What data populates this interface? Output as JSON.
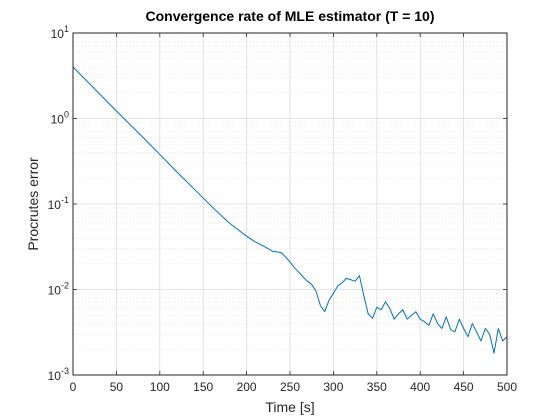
{
  "chart_data": {
    "type": "line",
    "title": "Convergence rate of MLE estimator (T = 10)",
    "xlabel": "Time [s]",
    "ylabel": "Procrutes error",
    "xlim": [
      0,
      500
    ],
    "ylim": [
      0.001,
      10
    ],
    "yscale": "log",
    "grid": true,
    "minor_grid": true,
    "x_ticks": [
      0,
      50,
      100,
      150,
      200,
      250,
      300,
      350,
      400,
      450,
      500
    ],
    "x_tick_labels": [
      "0",
      "50",
      "100",
      "150",
      "200",
      "250",
      "300",
      "350",
      "400",
      "450",
      "500"
    ],
    "y_ticks": [
      0.001,
      0.01,
      0.1,
      1,
      10
    ],
    "y_tick_labels": [
      {
        "base": "10",
        "exp": "-3"
      },
      {
        "base": "10",
        "exp": "-2"
      },
      {
        "base": "10",
        "exp": "-1"
      },
      {
        "base": "10",
        "exp": "0"
      },
      {
        "base": "10",
        "exp": "1"
      }
    ],
    "series": [
      {
        "color": "#0072BD",
        "x": [
          0,
          20,
          40,
          60,
          80,
          100,
          120,
          140,
          160,
          180,
          200,
          210,
          220,
          230,
          240,
          245,
          250,
          255,
          260,
          265,
          270,
          275,
          280,
          285,
          290,
          295,
          300,
          305,
          310,
          315,
          320,
          325,
          330,
          335,
          340,
          345,
          350,
          355,
          360,
          365,
          370,
          375,
          380,
          385,
          390,
          395,
          400,
          405,
          410,
          415,
          420,
          425,
          430,
          435,
          440,
          445,
          450,
          455,
          460,
          465,
          470,
          475,
          480,
          485,
          490,
          495,
          500
        ],
        "y": [
          4.0,
          2.5,
          1.55,
          0.97,
          0.61,
          0.38,
          0.235,
          0.148,
          0.093,
          0.06,
          0.042,
          0.036,
          0.032,
          0.028,
          0.027,
          0.024,
          0.021,
          0.018,
          0.016,
          0.014,
          0.0125,
          0.0115,
          0.0095,
          0.0065,
          0.0055,
          0.0075,
          0.009,
          0.011,
          0.012,
          0.0135,
          0.013,
          0.0125,
          0.0145,
          0.0085,
          0.0052,
          0.0046,
          0.0062,
          0.0058,
          0.0072,
          0.006,
          0.0045,
          0.0052,
          0.0058,
          0.0045,
          0.005,
          0.0055,
          0.0045,
          0.0042,
          0.0038,
          0.0052,
          0.004,
          0.0035,
          0.0048,
          0.0034,
          0.0032,
          0.0045,
          0.0035,
          0.0028,
          0.004,
          0.0032,
          0.0025,
          0.0035,
          0.003,
          0.0018,
          0.0035,
          0.0025,
          0.0028
        ]
      }
    ]
  }
}
